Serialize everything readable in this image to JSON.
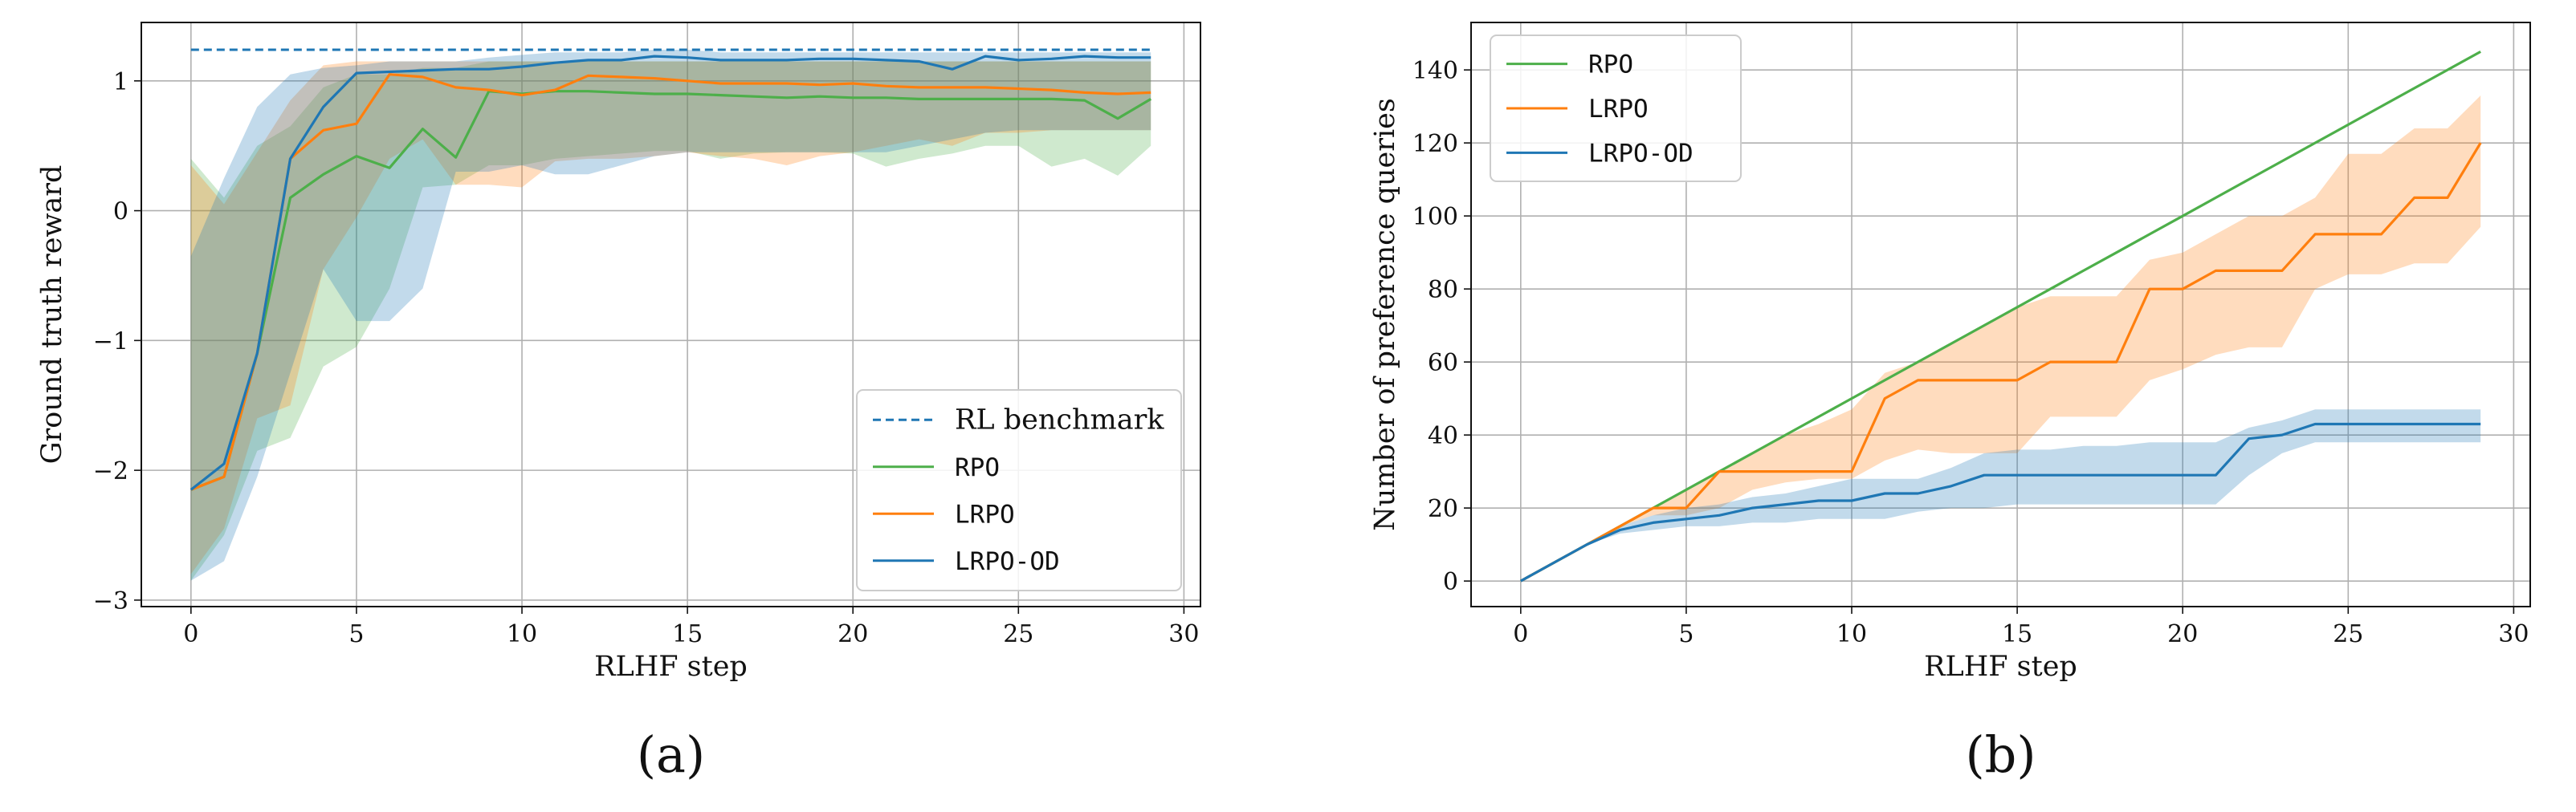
{
  "colors": {
    "rpo": "#4daf4a",
    "lrpo": "#ff7f0e",
    "lrpo_od": "#1f77b4",
    "benchmark": "#1f77b4"
  },
  "chart_data": [
    {
      "id": "a",
      "panel_label": "(a)",
      "type": "line",
      "xlabel": "RLHF step",
      "ylabel": "Ground truth reward",
      "xlim": [
        -1.5,
        30.5
      ],
      "ylim": [
        -3.05,
        1.45
      ],
      "xticks": [
        0,
        5,
        10,
        15,
        20,
        25,
        30
      ],
      "xtick_labels": [
        "0",
        "5",
        "10",
        "15",
        "20",
        "25",
        "30"
      ],
      "yticks": [
        -3,
        -2,
        -1,
        0,
        1
      ],
      "ytick_labels": [
        "−3",
        "−2",
        "−1",
        "0",
        "1"
      ],
      "grid": true,
      "legend_position": "lower-right",
      "x": [
        0,
        1,
        2,
        3,
        4,
        5,
        6,
        7,
        8,
        9,
        10,
        11,
        12,
        13,
        14,
        15,
        16,
        17,
        18,
        19,
        20,
        21,
        22,
        23,
        24,
        25,
        26,
        27,
        28,
        29
      ],
      "benchmark": {
        "name": "RL benchmark",
        "value": 1.24,
        "style": "dashed"
      },
      "series": [
        {
          "name": "RPO",
          "key": "rpo",
          "values": [
            -2.15,
            -2.05,
            -1.1,
            0.1,
            0.28,
            0.42,
            0.33,
            0.63,
            0.41,
            0.92,
            0.9,
            0.92,
            0.92,
            0.91,
            0.9,
            0.9,
            0.89,
            0.88,
            0.87,
            0.88,
            0.87,
            0.87,
            0.86,
            0.86,
            0.86,
            0.86,
            0.86,
            0.85,
            0.71,
            0.86
          ],
          "upper": [
            0.4,
            0.1,
            0.5,
            0.65,
            0.95,
            1.05,
            1.05,
            1.1,
            1.1,
            1.15,
            1.15,
            1.15,
            1.15,
            1.15,
            1.15,
            1.15,
            1.15,
            1.15,
            1.15,
            1.15,
            1.15,
            1.15,
            1.15,
            1.15,
            1.15,
            1.15,
            1.15,
            1.15,
            1.15,
            1.15
          ],
          "lower": [
            -2.85,
            -2.5,
            -1.85,
            -1.75,
            -1.2,
            -1.05,
            -0.6,
            0.18,
            0.2,
            0.35,
            0.35,
            0.4,
            0.42,
            0.44,
            0.46,
            0.46,
            0.4,
            0.44,
            0.45,
            0.45,
            0.44,
            0.34,
            0.4,
            0.44,
            0.5,
            0.5,
            0.34,
            0.4,
            0.27,
            0.5
          ]
        },
        {
          "name": "LRPO",
          "key": "lrpo",
          "values": [
            -2.15,
            -2.05,
            -1.1,
            0.4,
            0.62,
            0.67,
            1.05,
            1.03,
            0.95,
            0.93,
            0.89,
            0.93,
            1.04,
            1.03,
            1.02,
            1.0,
            0.98,
            0.98,
            0.98,
            0.97,
            0.98,
            0.96,
            0.95,
            0.95,
            0.95,
            0.94,
            0.93,
            0.91,
            0.9,
            0.91
          ],
          "upper": [
            0.35,
            0.05,
            0.45,
            0.85,
            1.12,
            1.15,
            1.15,
            1.15,
            1.15,
            1.15,
            1.15,
            1.15,
            1.15,
            1.15,
            1.15,
            1.15,
            1.15,
            1.15,
            1.15,
            1.15,
            1.15,
            1.15,
            1.15,
            1.15,
            1.15,
            1.15,
            1.15,
            1.15,
            1.15,
            1.15
          ],
          "lower": [
            -2.8,
            -2.45,
            -1.6,
            -1.5,
            -0.45,
            -0.05,
            0.4,
            0.55,
            0.2,
            0.2,
            0.18,
            0.38,
            0.4,
            0.4,
            0.42,
            0.45,
            0.42,
            0.4,
            0.35,
            0.42,
            0.45,
            0.5,
            0.55,
            0.5,
            0.6,
            0.6,
            0.62,
            0.62,
            0.62,
            0.62
          ]
        },
        {
          "name": "LRPO-OD",
          "key": "lrpo_od",
          "values": [
            -2.15,
            -1.95,
            -1.1,
            0.4,
            0.8,
            1.06,
            1.07,
            1.08,
            1.09,
            1.09,
            1.11,
            1.14,
            1.16,
            1.16,
            1.19,
            1.18,
            1.16,
            1.16,
            1.16,
            1.17,
            1.17,
            1.16,
            1.15,
            1.09,
            1.19,
            1.16,
            1.17,
            1.19,
            1.18,
            1.18
          ],
          "upper": [
            -0.35,
            0.25,
            0.8,
            1.05,
            1.1,
            1.12,
            1.15,
            1.15,
            1.15,
            1.18,
            1.2,
            1.22,
            1.22,
            1.22,
            1.24,
            1.24,
            1.22,
            1.22,
            1.22,
            1.22,
            1.22,
            1.22,
            1.22,
            1.22,
            1.22,
            1.22,
            1.22,
            1.22,
            1.22,
            1.22
          ],
          "lower": [
            -2.85,
            -2.7,
            -2.05,
            -1.25,
            -0.45,
            -0.85,
            -0.85,
            -0.6,
            0.3,
            0.3,
            0.35,
            0.28,
            0.28,
            0.35,
            0.42,
            0.45,
            0.45,
            0.45,
            0.45,
            0.45,
            0.45,
            0.45,
            0.5,
            0.55,
            0.6,
            0.62,
            0.62,
            0.62,
            0.62,
            0.62
          ]
        }
      ]
    },
    {
      "id": "b",
      "panel_label": "(b)",
      "type": "line",
      "xlabel": "RLHF step",
      "ylabel": "Number of preference queries",
      "xlim": [
        -1.5,
        30.5
      ],
      "ylim": [
        -7,
        153
      ],
      "xticks": [
        0,
        5,
        10,
        15,
        20,
        25,
        30
      ],
      "xtick_labels": [
        "0",
        "5",
        "10",
        "15",
        "20",
        "25",
        "30"
      ],
      "yticks": [
        0,
        20,
        40,
        60,
        80,
        100,
        120,
        140
      ],
      "ytick_labels": [
        "0",
        "20",
        "40",
        "60",
        "80",
        "100",
        "120",
        "140"
      ],
      "grid": true,
      "legend_position": "upper-left",
      "x": [
        0,
        1,
        2,
        3,
        4,
        5,
        6,
        7,
        8,
        9,
        10,
        11,
        12,
        13,
        14,
        15,
        16,
        17,
        18,
        19,
        20,
        21,
        22,
        23,
        24,
        25,
        26,
        27,
        28,
        29
      ],
      "series": [
        {
          "name": "RPO",
          "key": "rpo",
          "values": [
            0,
            5,
            10,
            15,
            20,
            25,
            30,
            35,
            40,
            45,
            50,
            55,
            60,
            65,
            70,
            75,
            80,
            85,
            90,
            95,
            100,
            105,
            110,
            115,
            120,
            125,
            130,
            135,
            140,
            145
          ]
        },
        {
          "name": "LRPO",
          "key": "lrpo",
          "values": [
            0,
            5,
            10,
            15,
            20,
            20,
            30,
            30,
            30,
            30,
            30,
            50,
            55,
            55,
            55,
            55,
            60,
            60,
            60,
            80,
            80,
            85,
            85,
            85,
            95,
            95,
            95,
            105,
            105,
            120
          ],
          "upper": [
            0,
            5,
            10,
            15,
            20,
            25,
            30,
            35,
            40,
            43,
            47,
            57,
            60,
            65,
            70,
            75,
            78,
            78,
            78,
            88,
            90,
            95,
            100,
            100,
            105,
            117,
            117,
            124,
            124,
            133
          ],
          "lower": [
            0,
            5,
            10,
            15,
            18,
            18,
            20,
            25,
            27,
            28,
            28,
            33,
            36,
            35,
            35,
            35,
            45,
            45,
            45,
            55,
            58,
            62,
            64,
            64,
            80,
            84,
            84,
            87,
            87,
            97
          ]
        },
        {
          "name": "LRPO-OD",
          "key": "lrpo_od",
          "values": [
            0,
            5,
            10,
            14,
            16,
            17,
            18,
            20,
            21,
            22,
            22,
            24,
            24,
            26,
            29,
            29,
            29,
            29,
            29,
            29,
            29,
            29,
            39,
            40,
            43,
            43,
            43,
            43,
            43,
            43
          ],
          "upper": [
            0,
            5,
            10,
            15,
            18,
            20,
            21,
            23,
            24,
            26,
            28,
            28,
            28,
            31,
            35,
            36,
            36,
            37,
            37,
            38,
            38,
            38,
            42,
            44,
            47,
            47,
            47,
            47,
            47,
            47
          ],
          "lower": [
            0,
            5,
            10,
            13,
            14,
            15,
            15,
            16,
            16,
            17,
            17,
            17,
            19,
            20,
            20,
            21,
            21,
            21,
            21,
            21,
            21,
            21,
            29,
            35,
            38,
            38,
            38,
            38,
            38,
            38
          ]
        }
      ]
    }
  ]
}
